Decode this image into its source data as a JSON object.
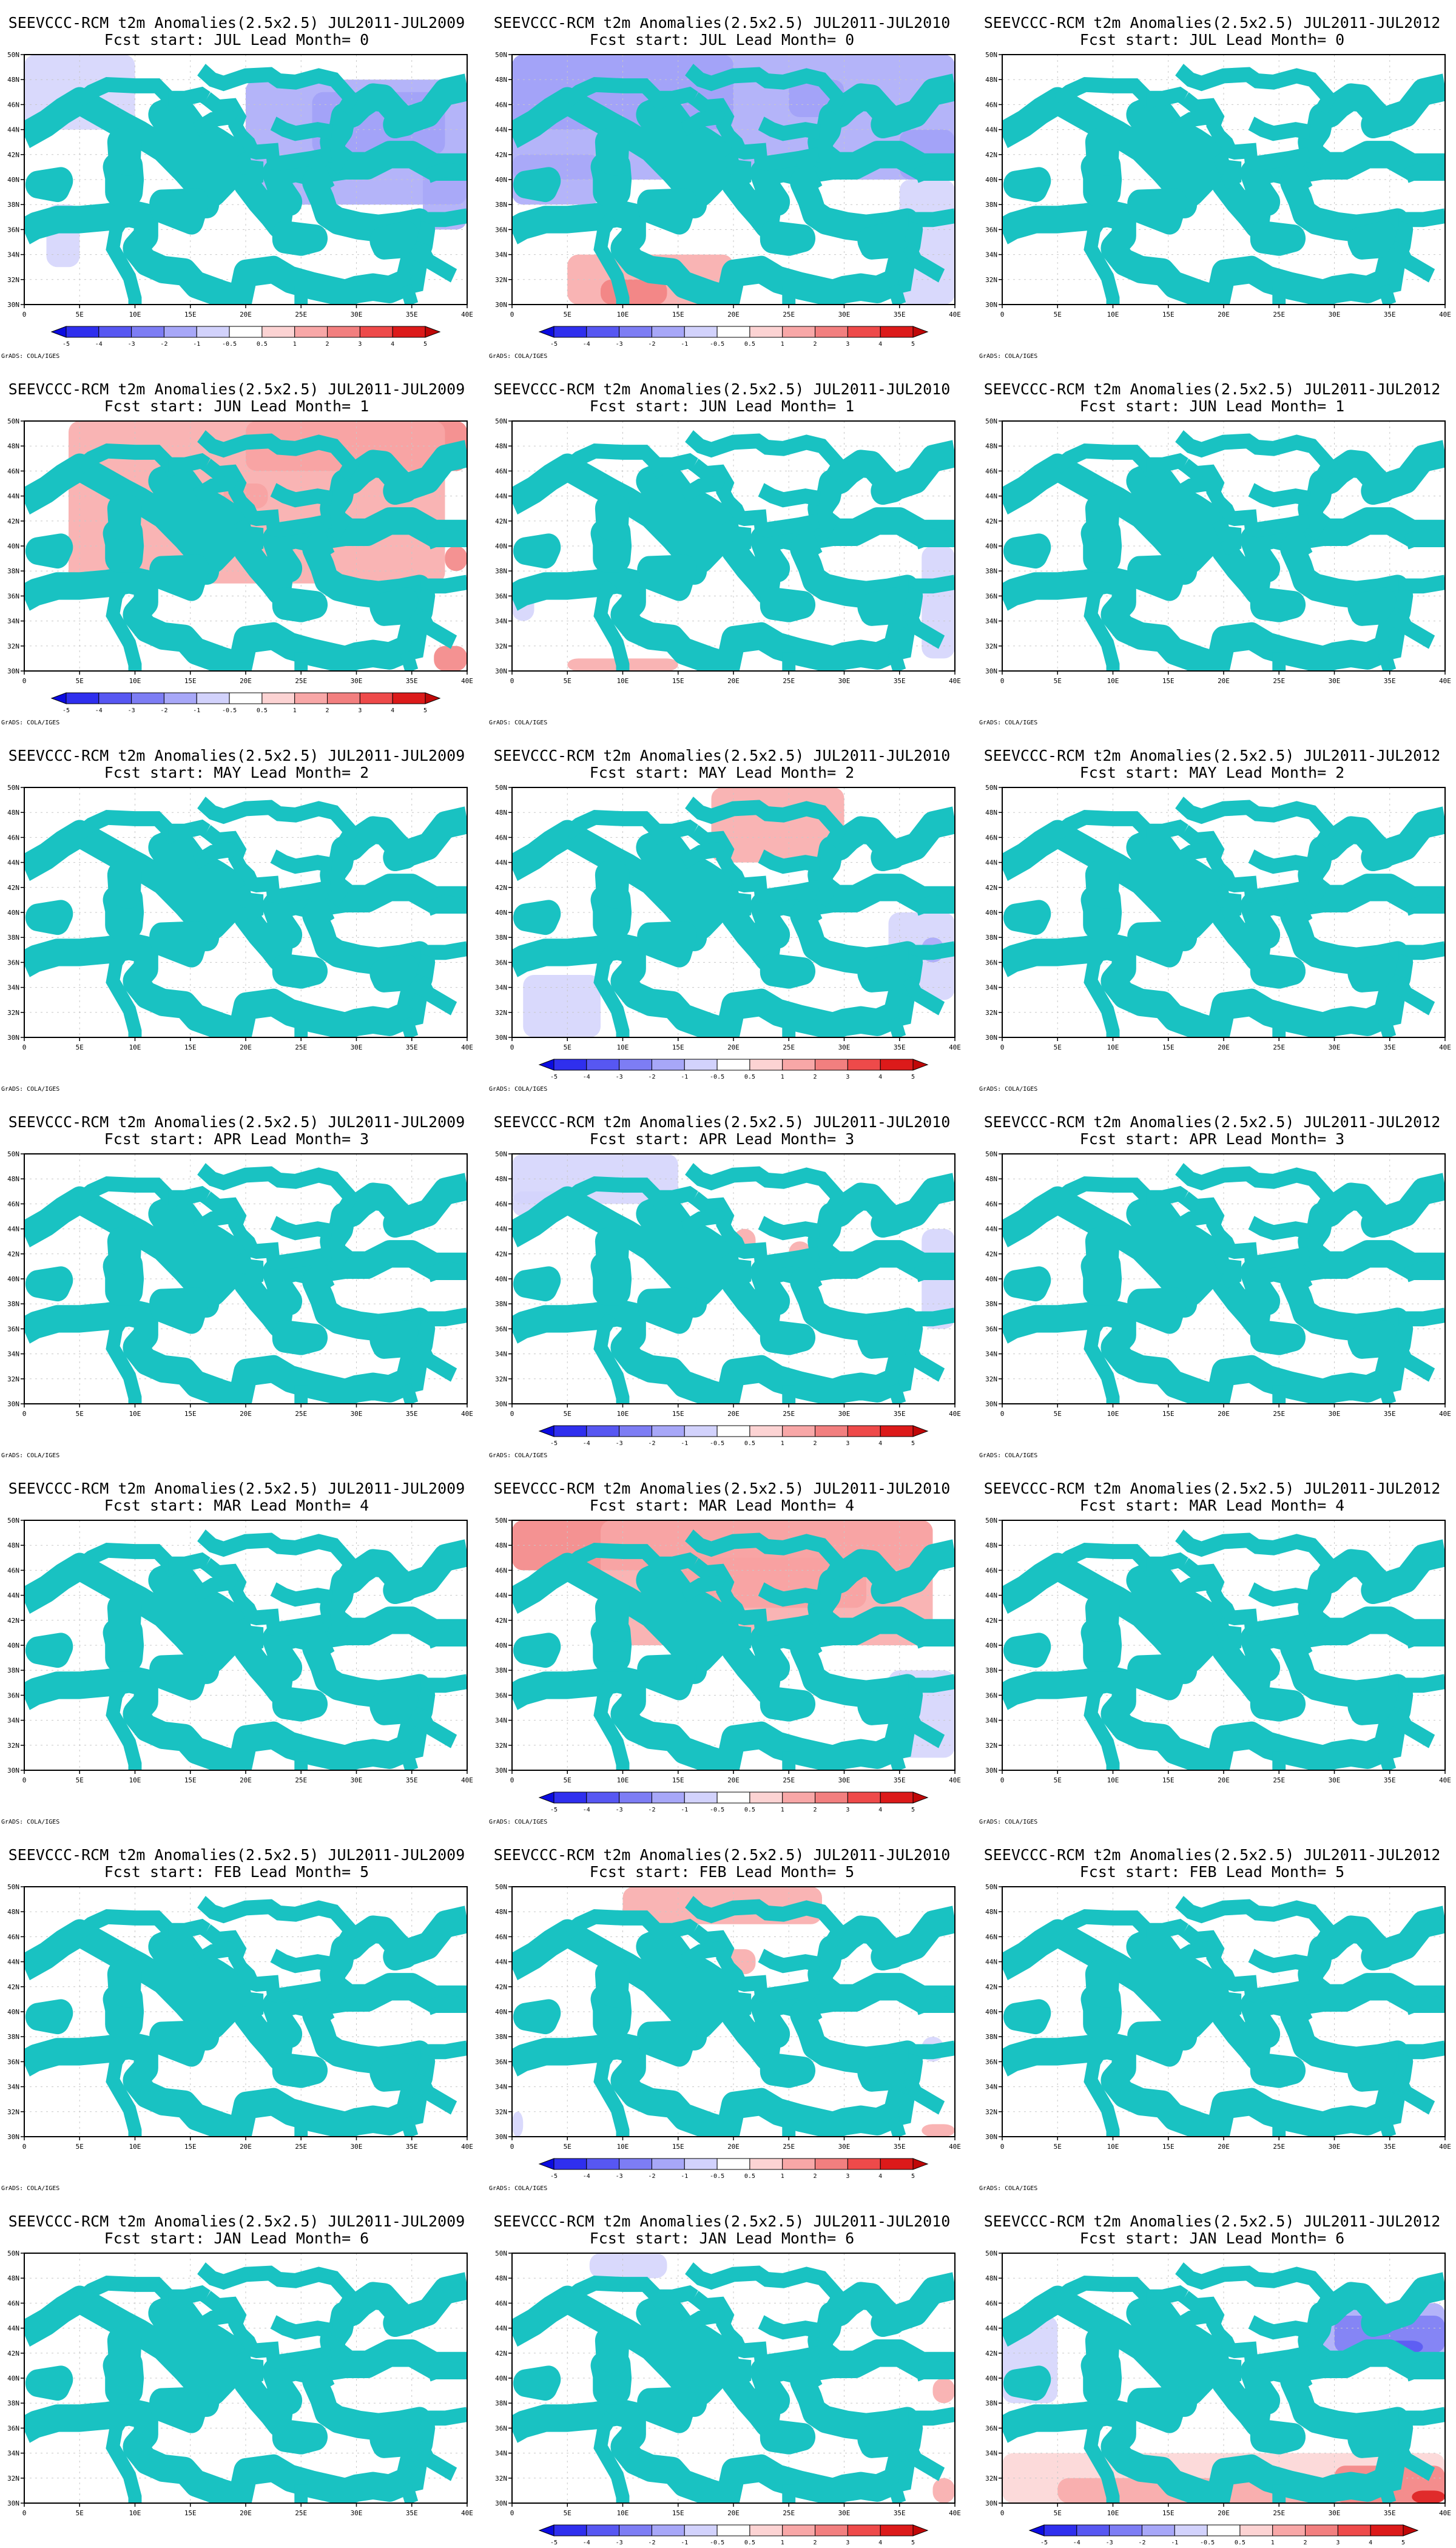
{
  "figure": {
    "columns": [
      "SEEVCCC-RCM t2m Anomalies(2.5x2.5) JUL2011-JUL2009",
      "SEEVCCC-RCM t2m Anomalies(2.5x2.5) JUL2011-JUL2010",
      "SEEVCCC-RCM t2m Anomalies(2.5x2.5) JUL2011-JUL2012"
    ],
    "rows": [
      {
        "subtitle": "Fcst start: JUL  Lead Month= 0",
        "colorbar": [
          true,
          true,
          false
        ]
      },
      {
        "subtitle": "Fcst start: JUN  Lead Month= 1",
        "colorbar": [
          true,
          false,
          false
        ]
      },
      {
        "subtitle": "Fcst start: MAY  Lead Month= 2",
        "colorbar": [
          false,
          true,
          false
        ]
      },
      {
        "subtitle": "Fcst start: APR  Lead Month= 3",
        "colorbar": [
          false,
          true,
          false
        ]
      },
      {
        "subtitle": "Fcst start: MAR  Lead Month= 4",
        "colorbar": [
          false,
          true,
          false
        ]
      },
      {
        "subtitle": "Fcst start: FEB  Lead Month= 5",
        "colorbar": [
          false,
          true,
          false
        ]
      },
      {
        "subtitle": "Fcst start: JAN  Lead Month= 6",
        "colorbar": [
          false,
          true,
          true
        ]
      }
    ],
    "credit": "GrADS: COLA/IGES"
  },
  "map": {
    "lon_range": [
      0,
      40
    ],
    "lat_range": [
      30,
      50
    ],
    "lon_ticks": [
      "0",
      "5E",
      "10E",
      "15E",
      "20E",
      "25E",
      "30E",
      "35E",
      "40E"
    ],
    "lat_ticks": [
      "30N",
      "32N",
      "34N",
      "36N",
      "38N",
      "40N",
      "42N",
      "44N",
      "46N",
      "48N",
      "50N"
    ],
    "coastline_color": "#19c2c2"
  },
  "legend": {
    "labels": [
      "-5",
      "-4",
      "-3",
      "-2",
      "-1",
      "-0.5",
      "0.5",
      "1",
      "2",
      "3",
      "4",
      "5"
    ],
    "colors": [
      "#0b0be0",
      "#2f2fee",
      "#5757f2",
      "#7d7df4",
      "#a7a7f8",
      "#d2d2fc",
      "#ffffff",
      "#fcd3d3",
      "#f8a7a7",
      "#f27f7f",
      "#ee4a4a",
      "#dc1a1a",
      "#c00808"
    ]
  },
  "chart_data": [
    {
      "panel": "r0c0",
      "type": "heatmap",
      "anomalies": [
        {
          "lon": [
            26,
            38
          ],
          "lat": [
            42,
            47
          ],
          "level": -2
        },
        {
          "lon": [
            20,
            40
          ],
          "lat": [
            38,
            48
          ],
          "level": -1
        },
        {
          "lon": [
            0,
            10
          ],
          "lat": [
            44,
            50
          ],
          "level": -0.5
        },
        {
          "lon": [
            2,
            5
          ],
          "lat": [
            33,
            38
          ],
          "level": -0.5
        },
        {
          "lon": [
            36,
            40
          ],
          "lat": [
            36,
            41
          ],
          "level": -1
        }
      ]
    },
    {
      "panel": "r0c1",
      "type": "heatmap",
      "anomalies": [
        {
          "lon": [
            0,
            20
          ],
          "lat": [
            44,
            50
          ],
          "level": -2
        },
        {
          "lon": [
            25,
            30
          ],
          "lat": [
            45,
            48
          ],
          "level": -2
        },
        {
          "lon": [
            35,
            40
          ],
          "lat": [
            40,
            44
          ],
          "level": -2
        },
        {
          "lon": [
            0,
            40
          ],
          "lat": [
            40,
            50
          ],
          "level": -1
        },
        {
          "lon": [
            0,
            8
          ],
          "lat": [
            38,
            42
          ],
          "level": -1
        },
        {
          "lon": [
            35,
            40
          ],
          "lat": [
            30,
            40
          ],
          "level": -0.5
        },
        {
          "lon": [
            5,
            20
          ],
          "lat": [
            30,
            34
          ],
          "level": 1
        },
        {
          "lon": [
            8,
            14
          ],
          "lat": [
            30,
            32
          ],
          "level": 2
        }
      ]
    },
    {
      "panel": "r0c2",
      "type": "heatmap",
      "anomalies": []
    },
    {
      "panel": "r1c0",
      "type": "heatmap",
      "anomalies": [
        {
          "lon": [
            20,
            40
          ],
          "lat": [
            46,
            50
          ],
          "level": 2
        },
        {
          "lon": [
            18,
            22
          ],
          "lat": [
            43,
            45
          ],
          "level": 2
        },
        {
          "lon": [
            38,
            40
          ],
          "lat": [
            38,
            40
          ],
          "level": 2
        },
        {
          "lon": [
            37,
            40
          ],
          "lat": [
            30,
            32
          ],
          "level": 2
        },
        {
          "lon": [
            4,
            38
          ],
          "lat": [
            37,
            50
          ],
          "level": 1
        }
      ]
    },
    {
      "panel": "r1c1",
      "type": "heatmap",
      "anomalies": [
        {
          "lon": [
            37,
            40
          ],
          "lat": [
            31,
            40
          ],
          "level": -0.5
        },
        {
          "lon": [
            0,
            2
          ],
          "lat": [
            34,
            37
          ],
          "level": -0.5
        },
        {
          "lon": [
            5,
            15
          ],
          "lat": [
            30,
            31
          ],
          "level": 1
        },
        {
          "lon": [
            32,
            33
          ],
          "lat": [
            46,
            47
          ],
          "level": 1
        }
      ]
    },
    {
      "panel": "r1c2",
      "type": "heatmap",
      "anomalies": []
    },
    {
      "panel": "r2c0",
      "type": "heatmap",
      "anomalies": []
    },
    {
      "panel": "r2c1",
      "type": "heatmap",
      "anomalies": [
        {
          "lon": [
            18,
            30
          ],
          "lat": [
            44,
            50
          ],
          "level": 1
        },
        {
          "lon": [
            1,
            8
          ],
          "lat": [
            30,
            35
          ],
          "level": -0.5
        },
        {
          "lon": [
            34,
            40
          ],
          "lat": [
            33,
            40
          ],
          "level": -0.5
        },
        {
          "lon": [
            37,
            39
          ],
          "lat": [
            36,
            38
          ],
          "level": -1
        }
      ]
    },
    {
      "panel": "r2c2",
      "type": "heatmap",
      "anomalies": []
    },
    {
      "panel": "r3c0",
      "type": "heatmap",
      "anomalies": []
    },
    {
      "panel": "r3c1",
      "type": "heatmap",
      "anomalies": [
        {
          "lon": [
            0,
            15
          ],
          "lat": [
            46,
            50
          ],
          "level": -0.5
        },
        {
          "lon": [
            0,
            5
          ],
          "lat": [
            45,
            47
          ],
          "level": -0.5
        },
        {
          "lon": [
            37,
            40
          ],
          "lat": [
            36,
            44
          ],
          "level": -0.5
        },
        {
          "lon": [
            20,
            22
          ],
          "lat": [
            42,
            44
          ],
          "level": 1
        },
        {
          "lon": [
            25,
            27
          ],
          "lat": [
            41,
            43
          ],
          "level": 1
        }
      ]
    },
    {
      "panel": "r3c2",
      "type": "heatmap",
      "anomalies": []
    },
    {
      "panel": "r4c0",
      "type": "heatmap",
      "anomalies": []
    },
    {
      "panel": "r4c1",
      "type": "heatmap",
      "anomalies": [
        {
          "lon": [
            0,
            38
          ],
          "lat": [
            46,
            50
          ],
          "level": 2
        },
        {
          "lon": [
            12,
            32
          ],
          "lat": [
            43,
            47
          ],
          "level": 2
        },
        {
          "lon": [
            8,
            38
          ],
          "lat": [
            40,
            50
          ],
          "level": 1
        },
        {
          "lon": [
            34,
            40
          ],
          "lat": [
            31,
            38
          ],
          "level": -0.5
        }
      ]
    },
    {
      "panel": "r4c2",
      "type": "heatmap",
      "anomalies": []
    },
    {
      "panel": "r5c0",
      "type": "heatmap",
      "anomalies": []
    },
    {
      "panel": "r5c1",
      "type": "heatmap",
      "anomalies": [
        {
          "lon": [
            10,
            28
          ],
          "lat": [
            47,
            50
          ],
          "level": 1
        },
        {
          "lon": [
            19,
            22
          ],
          "lat": [
            43,
            45
          ],
          "level": 1
        },
        {
          "lon": [
            37,
            40
          ],
          "lat": [
            30,
            31
          ],
          "level": 1
        },
        {
          "lon": [
            37,
            39
          ],
          "lat": [
            36,
            38
          ],
          "level": -0.5
        },
        {
          "lon": [
            0,
            1
          ],
          "lat": [
            30,
            32
          ],
          "level": -0.5
        }
      ]
    },
    {
      "panel": "r5c2",
      "type": "heatmap",
      "anomalies": []
    },
    {
      "panel": "r6c0",
      "type": "heatmap",
      "anomalies": []
    },
    {
      "panel": "r6c1",
      "type": "heatmap",
      "anomalies": [
        {
          "lon": [
            7,
            14
          ],
          "lat": [
            48,
            50
          ],
          "level": -0.5
        },
        {
          "lon": [
            38,
            40
          ],
          "lat": [
            38,
            40
          ],
          "level": 1
        },
        {
          "lon": [
            38,
            40
          ],
          "lat": [
            30,
            32
          ],
          "level": 1
        }
      ]
    },
    {
      "panel": "r6c2",
      "type": "heatmap",
      "anomalies": [
        {
          "lon": [
            28,
            40
          ],
          "lat": [
            41,
            46
          ],
          "level": -1
        },
        {
          "lon": [
            30,
            40
          ],
          "lat": [
            42,
            45
          ],
          "level": -2
        },
        {
          "lon": [
            33,
            38
          ],
          "lat": [
            42,
            43
          ],
          "level": -3
        },
        {
          "lon": [
            0,
            5
          ],
          "lat": [
            38,
            45
          ],
          "level": -0.5
        },
        {
          "lon": [
            0,
            40
          ],
          "lat": [
            30,
            34
          ],
          "level": 0.5
        },
        {
          "lon": [
            5,
            35
          ],
          "lat": [
            30,
            32
          ],
          "level": 1
        },
        {
          "lon": [
            30,
            40
          ],
          "lat": [
            30,
            33
          ],
          "level": 2
        },
        {
          "lon": [
            37,
            40
          ],
          "lat": [
            30,
            31
          ],
          "level": 4
        }
      ]
    }
  ]
}
